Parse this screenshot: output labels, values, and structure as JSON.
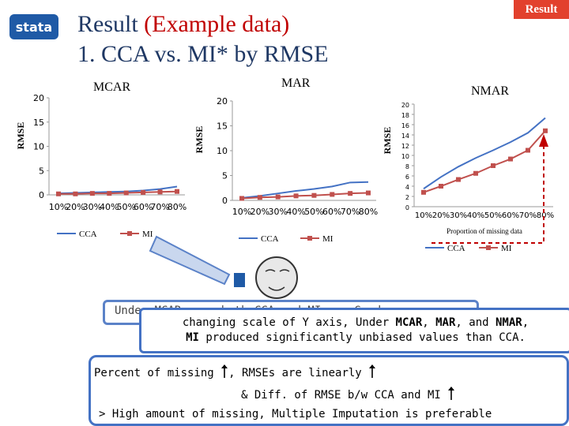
{
  "header": {
    "logo_text": "stata",
    "title_line1_part1": "Result ",
    "title_line1_part2": "(Example data)",
    "title_line2": "1. CCA vs. MI* by RMSE",
    "badge": "Result"
  },
  "chart_data": [
    {
      "type": "line",
      "title": "MCAR",
      "ylabel": "RMSE",
      "xlabel": "",
      "categories": [
        "10%",
        "20%",
        "30%",
        "40%",
        "50%",
        "60%",
        "70%",
        "80%"
      ],
      "yticks": [
        "20",
        "15",
        "10",
        "5",
        "0"
      ],
      "ylim": [
        0,
        20
      ],
      "series": [
        {
          "name": "CCA",
          "color": "#4472c4",
          "values": [
            0.3,
            0.4,
            0.5,
            0.6,
            0.7,
            0.9,
            1.2,
            1.7
          ]
        },
        {
          "name": "MI",
          "color": "#c0504d",
          "values": [
            0.2,
            0.2,
            0.3,
            0.3,
            0.4,
            0.5,
            0.6,
            0.7
          ]
        }
      ],
      "legend": [
        "CCA",
        "MI"
      ],
      "legend_position": "bottom"
    },
    {
      "type": "line",
      "title": "MAR",
      "ylabel": "RMSE",
      "xlabel": "",
      "categories": [
        "10%",
        "20%",
        "30%",
        "40%",
        "50%",
        "60%",
        "70%",
        "80%"
      ],
      "yticks": [
        "20",
        "15",
        "10",
        "5",
        "0"
      ],
      "ylim": [
        0,
        20
      ],
      "series": [
        {
          "name": "CCA",
          "color": "#4472c4",
          "values": [
            0.5,
            0.9,
            1.4,
            1.9,
            2.3,
            2.8,
            3.6,
            3.7
          ]
        },
        {
          "name": "MI",
          "color": "#c0504d",
          "values": [
            0.4,
            0.6,
            0.7,
            0.9,
            1.0,
            1.2,
            1.4,
            1.5
          ]
        }
      ],
      "legend": [
        "CCA",
        "MI"
      ],
      "legend_position": "bottom"
    },
    {
      "type": "line",
      "title": "NMAR",
      "ylabel": "RMSE",
      "xlabel": "Proportion of missing data",
      "categories": [
        "10%",
        "20%",
        "30%",
        "40%",
        "50%",
        "60%",
        "70%",
        "80%"
      ],
      "yticks": [
        "20",
        "18",
        "16",
        "14",
        "12",
        "10",
        "8",
        "6",
        "4",
        "2",
        "0"
      ],
      "ylim": [
        0,
        20
      ],
      "series": [
        {
          "name": "CCA",
          "color": "#4472c4",
          "values": [
            3.5,
            5.8,
            7.8,
            9.5,
            11.0,
            12.6,
            14.4,
            17.3
          ]
        },
        {
          "name": "MI",
          "color": "#c0504d",
          "values": [
            2.8,
            4.0,
            5.3,
            6.5,
            8.0,
            9.3,
            11.0,
            14.8
          ]
        }
      ],
      "legend": [
        "CCA",
        "MI"
      ],
      "legend_position": "bottom"
    }
  ],
  "callouts": {
    "box1_text": "Under MCAR, ... both CCA and MI are Good",
    "box2_line1_a": "changing scale of Y axis, Under ",
    "box2_line1_mcar": "MCAR",
    "box2_line1_comma": ", ",
    "box2_line1_mar": "MAR",
    "box2_line1_and": ", and ",
    "box2_line1_nmar": "NMAR",
    "box2_line1_end": ",",
    "box2_line2_mi": "MI",
    "box2_line2_rest": " produced significantly unbiased values than CCA.",
    "box3_line1_a": "Percent of missing",
    "box3_line1_b": ", RMSEs are linearly",
    "box3_line2": "& Diff. of RMSE b/w CCA and MI",
    "box3_line3": "> High amount of missing, Multiple Imputation is preferable"
  },
  "colors": {
    "accent": "#4472c4",
    "red": "#c0504d",
    "badge": "#e2412d",
    "title": "#1f3864"
  }
}
